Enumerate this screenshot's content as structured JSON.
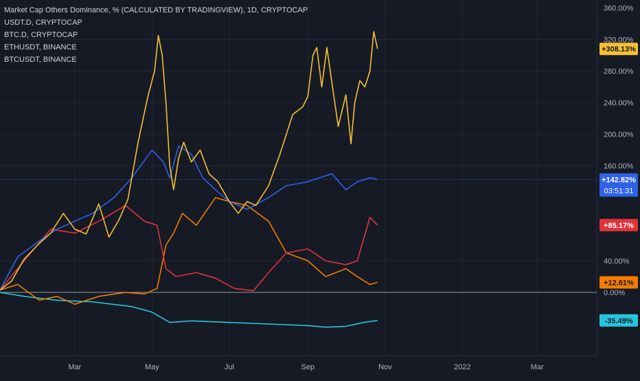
{
  "legend": {
    "main": "Market Cap Others Dominance, % (CALCULATED BY TRADINGVIEW), 1D, CRYPTOCAP",
    "s1": "USDT.D, CRYPTOCAP",
    "s2": "BTC.D, CRYPTOCAP",
    "s3": "ETHUSDT, BINANCE",
    "s4": "BTCUSDT, BINANCE"
  },
  "countdown": "03:51:31",
  "colors": {
    "background": "#161a25",
    "grid": "#232735",
    "axis_text": "#b2b5be",
    "zero_line": "#9598a1",
    "others": "#f7c034",
    "blue": "#2e62e8",
    "red": "#e0343a",
    "orange": "#f57c00",
    "cyan": "#26c6da"
  },
  "chart_data": {
    "type": "line",
    "title": "Market Cap Others Dominance, % (CALCULATED BY TRADINGVIEW), 1D, CRYPTOCAP",
    "x_unit": "date",
    "x_ticks": [
      "Mar",
      "May",
      "Jul",
      "Sep",
      "Nov",
      "2022",
      "Mar"
    ],
    "x_tick_dates": [
      "2021-03-01",
      "2021-05-01",
      "2021-07-01",
      "2021-09-01",
      "2021-11-01",
      "2022-01-01",
      "2022-03-01"
    ],
    "ylim": [
      -80,
      370
    ],
    "y_ticks": [
      "360.00%",
      "320.00%",
      "280.00%",
      "240.00%",
      "200.00%",
      "160.00%",
      "40.00%",
      "0.00%"
    ],
    "y_tick_values": [
      360,
      320,
      280,
      240,
      200,
      160,
      40,
      0
    ],
    "series": [
      {
        "color": "#f7c034",
        "last_label": "+308.13%",
        "last_value": 308.13,
        "points": [
          [
            "2021-01-01",
            3
          ],
          [
            "2021-01-10",
            14
          ],
          [
            "2021-01-20",
            42
          ],
          [
            "2021-02-01",
            62
          ],
          [
            "2021-02-10",
            75
          ],
          [
            "2021-02-20",
            100
          ],
          [
            "2021-03-01",
            80
          ],
          [
            "2021-03-10",
            74
          ],
          [
            "2021-03-20",
            112
          ],
          [
            "2021-03-28",
            70
          ],
          [
            "2021-04-05",
            92
          ],
          [
            "2021-04-12",
            118
          ],
          [
            "2021-04-20",
            190
          ],
          [
            "2021-04-28",
            250
          ],
          [
            "2021-05-03",
            280
          ],
          [
            "2021-05-06",
            325
          ],
          [
            "2021-05-09",
            300
          ],
          [
            "2021-05-12",
            240
          ],
          [
            "2021-05-15",
            160
          ],
          [
            "2021-05-18",
            130
          ],
          [
            "2021-05-22",
            170
          ],
          [
            "2021-05-26",
            190
          ],
          [
            "2021-06-01",
            165
          ],
          [
            "2021-06-08",
            180
          ],
          [
            "2021-06-15",
            150
          ],
          [
            "2021-06-22",
            140
          ],
          [
            "2021-07-01",
            115
          ],
          [
            "2021-07-08",
            100
          ],
          [
            "2021-07-15",
            115
          ],
          [
            "2021-07-22",
            110
          ],
          [
            "2021-08-01",
            135
          ],
          [
            "2021-08-10",
            175
          ],
          [
            "2021-08-20",
            225
          ],
          [
            "2021-08-28",
            235
          ],
          [
            "2021-09-01",
            248
          ],
          [
            "2021-09-05",
            300
          ],
          [
            "2021-09-08",
            310
          ],
          [
            "2021-09-12",
            260
          ],
          [
            "2021-09-16",
            310
          ],
          [
            "2021-09-20",
            265
          ],
          [
            "2021-09-25",
            210
          ],
          [
            "2021-10-01",
            250
          ],
          [
            "2021-10-05",
            188
          ],
          [
            "2021-10-08",
            240
          ],
          [
            "2021-10-12",
            268
          ],
          [
            "2021-10-16",
            260
          ],
          [
            "2021-10-20",
            280
          ],
          [
            "2021-10-23",
            330
          ],
          [
            "2021-10-26",
            308.13
          ]
        ]
      },
      {
        "color": "#2e62e8",
        "last_label": "+142.82%",
        "last_value": 142.82,
        "points": [
          [
            "2021-01-01",
            3
          ],
          [
            "2021-01-15",
            45
          ],
          [
            "2021-02-01",
            65
          ],
          [
            "2021-02-15",
            80
          ],
          [
            "2021-03-01",
            90
          ],
          [
            "2021-03-15",
            100
          ],
          [
            "2021-04-01",
            120
          ],
          [
            "2021-04-15",
            145
          ],
          [
            "2021-05-01",
            180
          ],
          [
            "2021-05-10",
            165
          ],
          [
            "2021-05-15",
            145
          ],
          [
            "2021-05-22",
            185
          ],
          [
            "2021-06-01",
            175
          ],
          [
            "2021-06-10",
            145
          ],
          [
            "2021-06-20",
            130
          ],
          [
            "2021-07-01",
            115
          ],
          [
            "2021-07-15",
            105
          ],
          [
            "2021-08-01",
            120
          ],
          [
            "2021-08-15",
            135
          ],
          [
            "2021-09-01",
            140
          ],
          [
            "2021-09-10",
            145
          ],
          [
            "2021-09-20",
            150
          ],
          [
            "2021-10-01",
            130
          ],
          [
            "2021-10-10",
            140
          ],
          [
            "2021-10-20",
            145
          ],
          [
            "2021-10-26",
            142.82
          ]
        ]
      },
      {
        "color": "#e0343a",
        "last_label": "+85.17%",
        "last_value": 85.17,
        "points": [
          [
            "2021-01-01",
            3
          ],
          [
            "2021-01-20",
            40
          ],
          [
            "2021-02-10",
            80
          ],
          [
            "2021-03-01",
            75
          ],
          [
            "2021-03-20",
            90
          ],
          [
            "2021-04-10",
            110
          ],
          [
            "2021-04-25",
            90
          ],
          [
            "2021-05-05",
            85
          ],
          [
            "2021-05-12",
            30
          ],
          [
            "2021-05-20",
            20
          ],
          [
            "2021-06-05",
            25
          ],
          [
            "2021-06-20",
            18
          ],
          [
            "2021-07-05",
            5
          ],
          [
            "2021-07-20",
            2
          ],
          [
            "2021-08-01",
            25
          ],
          [
            "2021-08-15",
            50
          ],
          [
            "2021-09-01",
            55
          ],
          [
            "2021-09-15",
            40
          ],
          [
            "2021-10-01",
            35
          ],
          [
            "2021-10-10",
            40
          ],
          [
            "2021-10-20",
            95
          ],
          [
            "2021-10-26",
            85.17
          ]
        ]
      },
      {
        "color": "#f57c00",
        "last_label": "+12.61%",
        "last_value": 12.61,
        "points": [
          [
            "2021-01-01",
            3
          ],
          [
            "2021-01-15",
            10
          ],
          [
            "2021-02-01",
            -10
          ],
          [
            "2021-02-15",
            -5
          ],
          [
            "2021-03-01",
            -15
          ],
          [
            "2021-03-20",
            -5
          ],
          [
            "2021-04-10",
            0
          ],
          [
            "2021-04-25",
            -2
          ],
          [
            "2021-05-05",
            5
          ],
          [
            "2021-05-12",
            60
          ],
          [
            "2021-05-18",
            75
          ],
          [
            "2021-05-25",
            100
          ],
          [
            "2021-06-05",
            85
          ],
          [
            "2021-06-20",
            120
          ],
          [
            "2021-07-01",
            115
          ],
          [
            "2021-07-15",
            110
          ],
          [
            "2021-08-01",
            90
          ],
          [
            "2021-08-15",
            50
          ],
          [
            "2021-09-01",
            40
          ],
          [
            "2021-09-15",
            20
          ],
          [
            "2021-10-01",
            30
          ],
          [
            "2021-10-10",
            20
          ],
          [
            "2021-10-20",
            10
          ],
          [
            "2021-10-26",
            12.61
          ]
        ]
      },
      {
        "color": "#26c6da",
        "last_label": "-35.49%",
        "last_value": -35.49,
        "points": [
          [
            "2021-01-01",
            0
          ],
          [
            "2021-01-20",
            -5
          ],
          [
            "2021-02-15",
            -10
          ],
          [
            "2021-03-15",
            -12
          ],
          [
            "2021-04-15",
            -18
          ],
          [
            "2021-05-01",
            -25
          ],
          [
            "2021-05-15",
            -38
          ],
          [
            "2021-06-01",
            -36
          ],
          [
            "2021-07-01",
            -38
          ],
          [
            "2021-08-01",
            -40
          ],
          [
            "2021-09-01",
            -42
          ],
          [
            "2021-09-15",
            -44
          ],
          [
            "2021-10-01",
            -43
          ],
          [
            "2021-10-15",
            -38
          ],
          [
            "2021-10-26",
            -35.49
          ]
        ]
      }
    ]
  }
}
